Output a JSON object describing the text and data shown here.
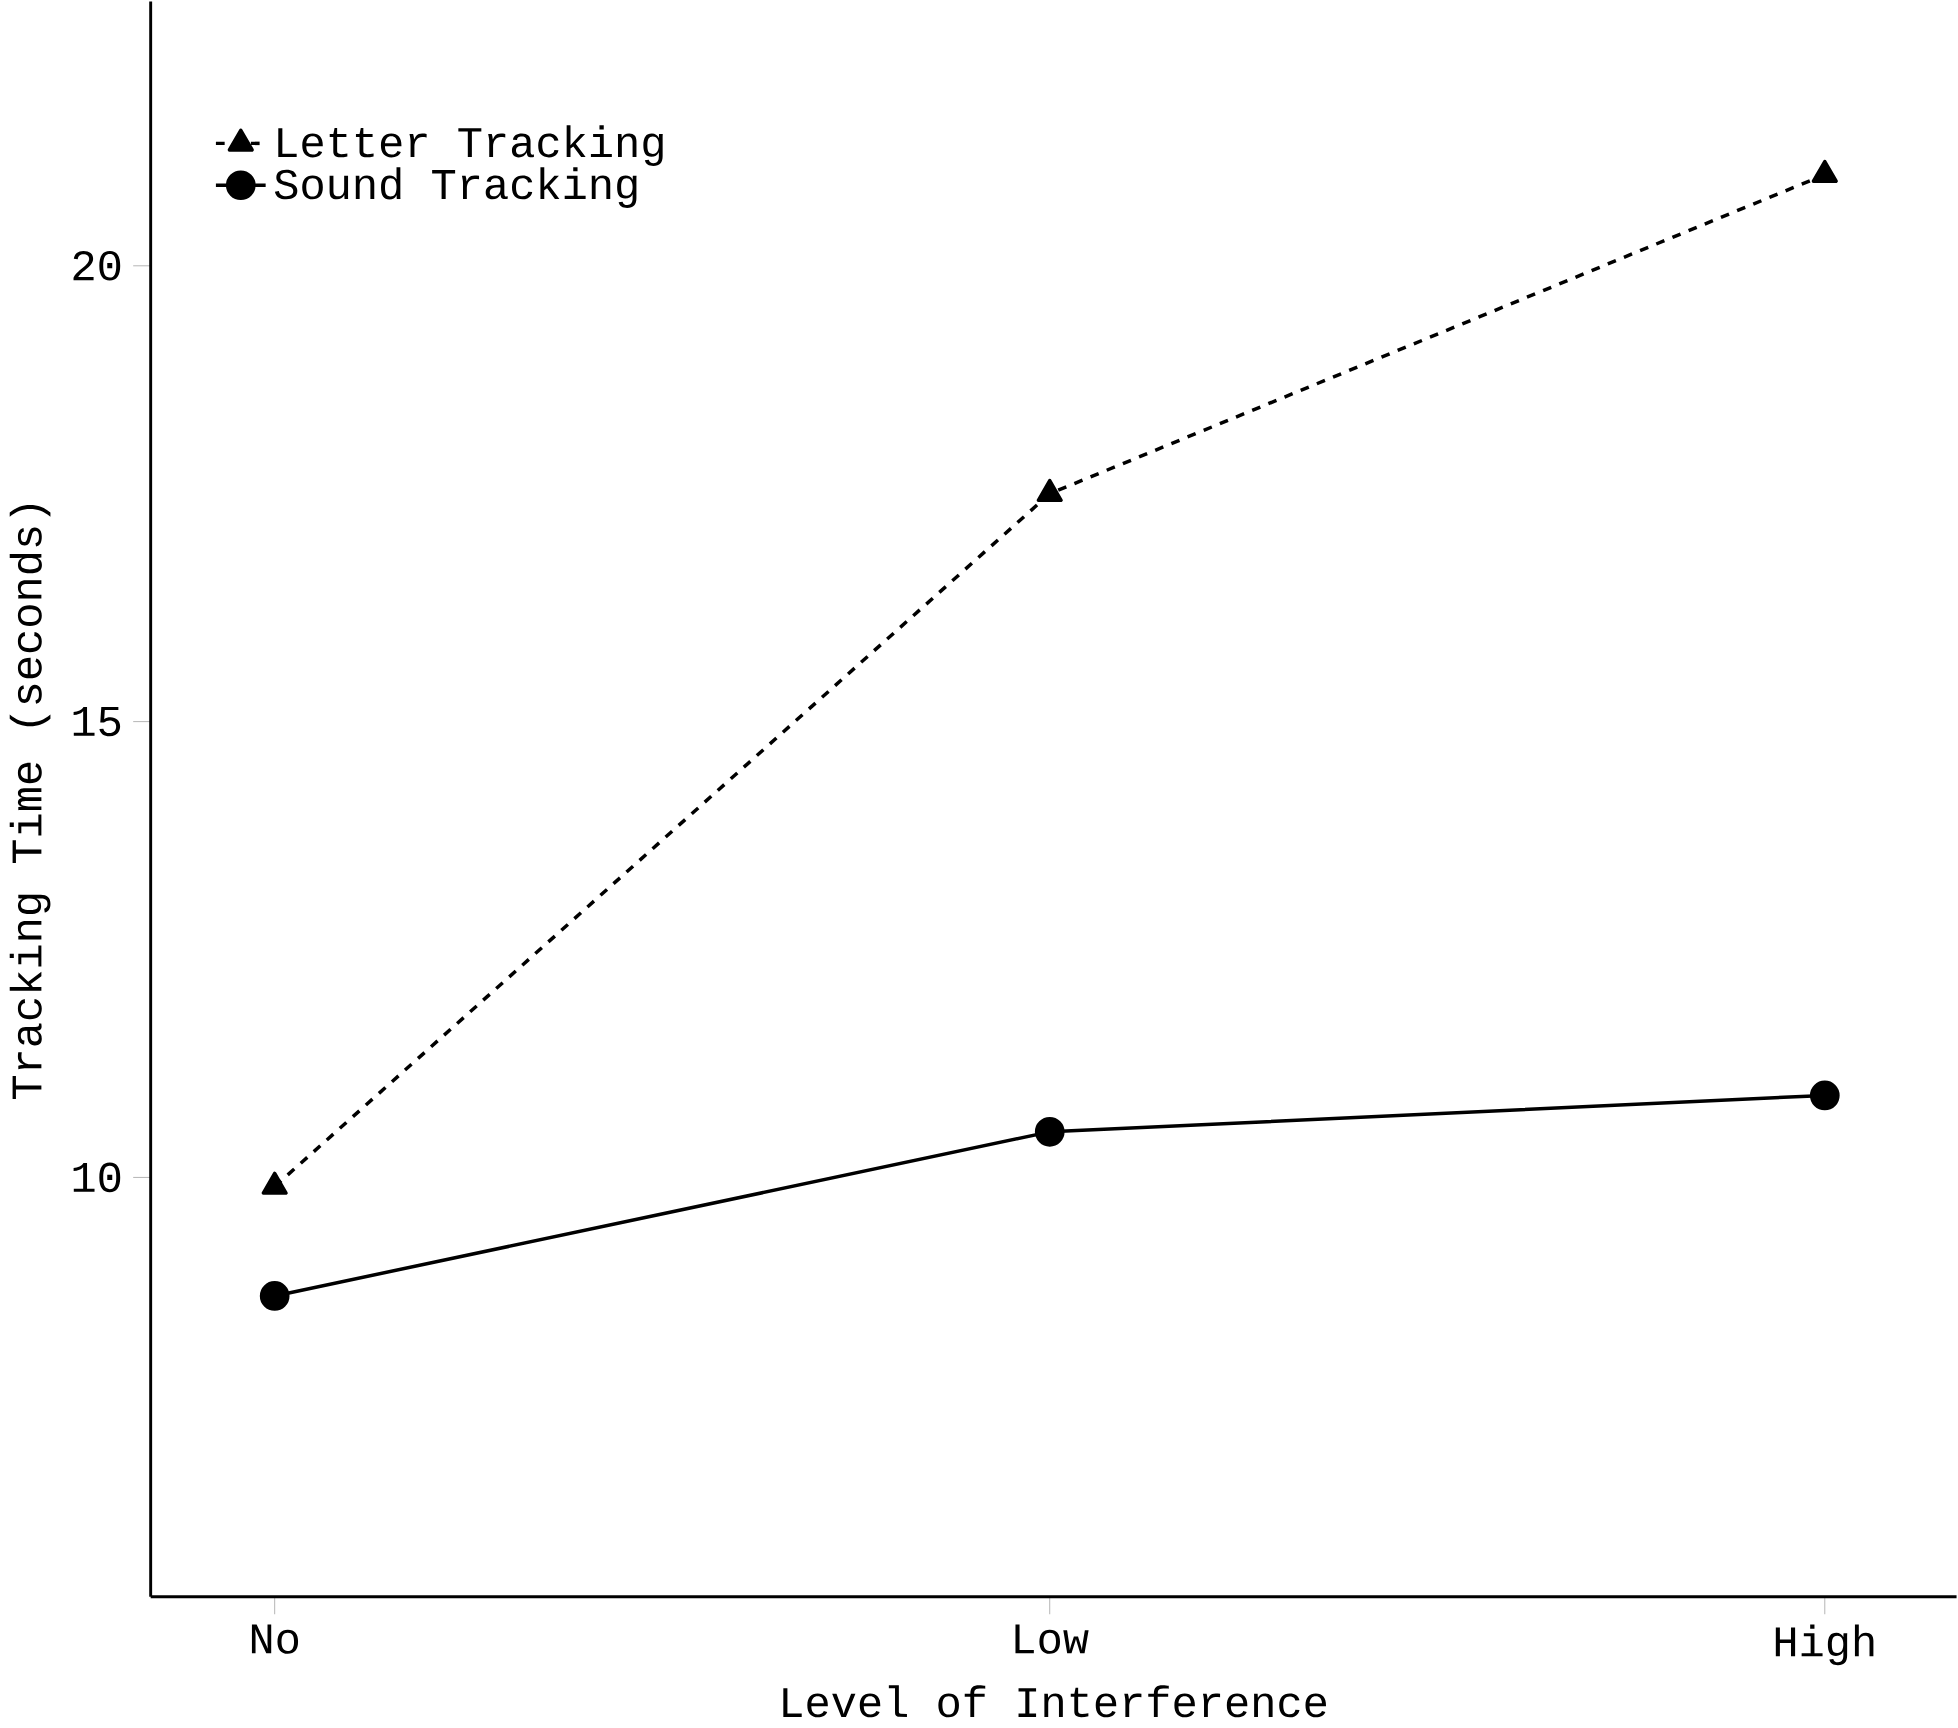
{
  "chart_data": {
    "type": "line",
    "xlabel": "Level of Interference",
    "ylabel": "Tracking Time (seconds)",
    "categories": [
      "No",
      "Low",
      "High"
    ],
    "series": [
      {
        "name": "Letter Tracking",
        "color": "#000000",
        "values": [
          9.9,
          17.5,
          21.0
        ],
        "marker": "triangle",
        "line_style": "dashed"
      },
      {
        "name": "Sound Tracking",
        "color": "#000000",
        "values": [
          8.7,
          10.5,
          10.9
        ],
        "marker": "circle",
        "line_style": "solid"
      }
    ],
    "ylim": [
      5.4,
      22.9
    ],
    "yticks": [
      10,
      15,
      20
    ],
    "grid": false,
    "legend": "top left"
  }
}
